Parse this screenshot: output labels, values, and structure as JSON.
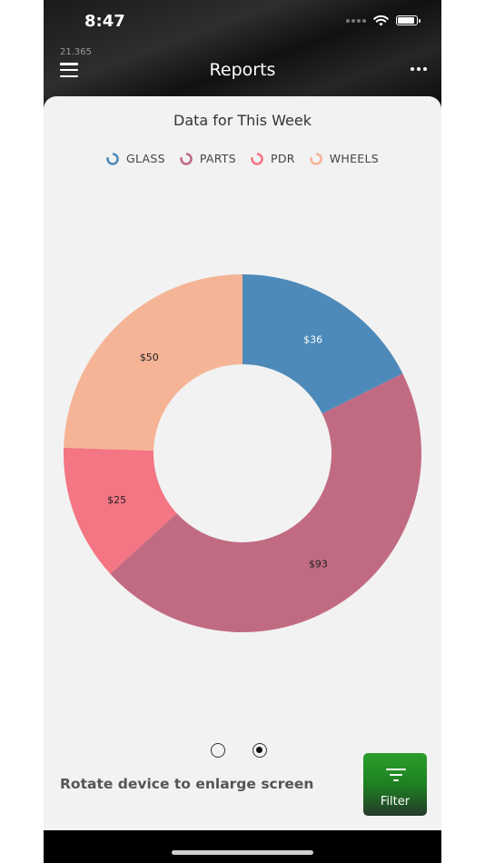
{
  "status_bar": {
    "time": "8:47"
  },
  "header": {
    "version": "21.365",
    "title": "Reports"
  },
  "chart_data": {
    "type": "pie",
    "title": "Data for This Week",
    "categories": [
      "GLASS",
      "PARTS",
      "PDR",
      "WHEELS"
    ],
    "values": [
      36,
      93,
      25,
      50
    ],
    "data_labels": [
      "$36",
      "$93",
      "$25",
      "$50"
    ],
    "colors": [
      "#4d8ab9",
      "#c16b83",
      "#f47583",
      "#f5b496"
    ],
    "donut": true,
    "legend_position": "top"
  },
  "pager": {
    "pages": 2,
    "active": 2
  },
  "footer": {
    "hint": "Rotate device to enlarge screen",
    "filter_label": "Filter"
  }
}
